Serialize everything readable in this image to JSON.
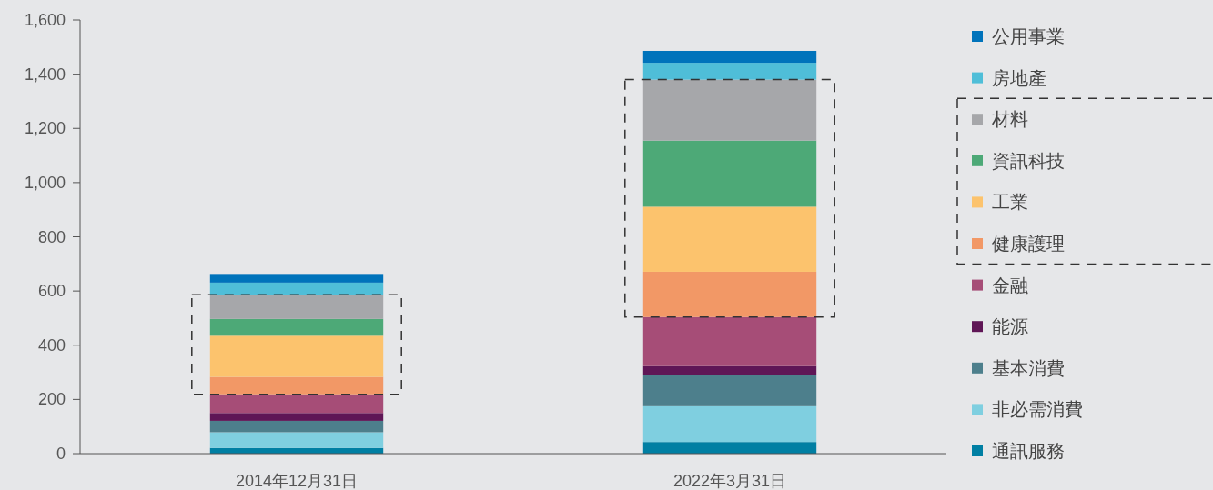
{
  "chart_data": {
    "type": "bar",
    "stacked": true,
    "legend": "right",
    "grid": false,
    "categories": [
      "2014年12月31日",
      "2022年3月31日"
    ],
    "ylim": [
      0,
      1600
    ],
    "yticks": [
      0,
      200,
      400,
      600,
      800,
      {
        "value": 1000,
        "label": "1,000"
      },
      {
        "value": 1200,
        "label": "1,200"
      },
      {
        "value": 1400,
        "label": "1,400"
      },
      {
        "value": 1600,
        "label": "1,600"
      }
    ],
    "series": [
      {
        "name": "通訊服務",
        "color": "#007fa3",
        "values": [
          21,
          43
        ]
      },
      {
        "name": "非必需消費",
        "color": "#7fcfe0",
        "values": [
          58,
          132
        ]
      },
      {
        "name": "基本消費",
        "color": "#4d7f8c",
        "values": [
          42,
          116
        ]
      },
      {
        "name": "能源",
        "color": "#5f1656",
        "values": [
          29,
          32
        ]
      },
      {
        "name": "金融",
        "color": "#a64d77",
        "values": [
          69,
          181
        ]
      },
      {
        "name": "健康護理",
        "color": "#f29866",
        "values": [
          64,
          167
        ]
      },
      {
        "name": "工業",
        "color": "#fcc36d",
        "values": [
          152,
          240
        ]
      },
      {
        "name": "資訊科技",
        "color": "#4da977",
        "values": [
          62,
          244
        ]
      },
      {
        "name": "材料",
        "color": "#a6a7aa",
        "values": [
          89,
          225
        ]
      },
      {
        "name": "房地產",
        "color": "#4fbed8",
        "values": [
          45,
          62
        ]
      },
      {
        "name": "公用事業",
        "color": "#0073bb",
        "values": [
          32,
          44
        ]
      }
    ]
  }
}
